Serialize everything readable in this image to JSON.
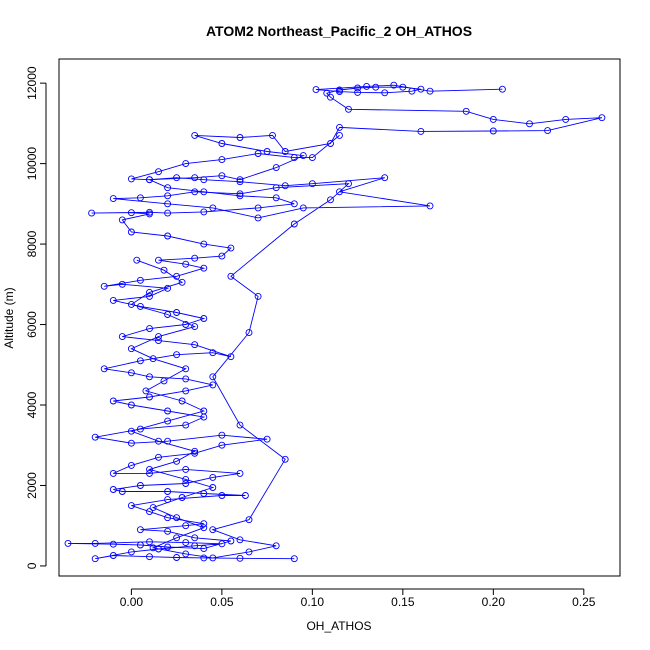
{
  "chart_data": {
    "type": "line",
    "title": "ATOM2 Northeast_Pacific_2 OH_ATHOS",
    "xlabel": "OH_ATHOS",
    "ylabel": "Altitude (m)",
    "xlim": [
      -0.04,
      0.27
    ],
    "ylim": [
      -250,
      12600
    ],
    "x_ticks": [
      0.0,
      0.05,
      0.1,
      0.15,
      0.2,
      0.25
    ],
    "x_tick_labels": [
      "0.00",
      "0.05",
      "0.10",
      "0.15",
      "0.20",
      "0.25"
    ],
    "y_ticks": [
      0,
      2000,
      4000,
      6000,
      8000,
      10000,
      12000
    ],
    "y_tick_labels": [
      "0",
      "2000",
      "4000",
      "6000",
      "8000",
      "10000",
      "12000"
    ],
    "grid": false,
    "series": [
      {
        "color": "#0000ff",
        "marker": "open-circle",
        "points": [
          [
            0.09,
            180
          ],
          [
            0.06,
            190
          ],
          [
            0.04,
            200
          ],
          [
            0.025,
            210
          ],
          [
            0.01,
            230
          ],
          [
            -0.01,
            260
          ],
          [
            -0.02,
            180
          ],
          [
            0.0,
            350
          ],
          [
            0.015,
            420
          ],
          [
            0.035,
            500
          ],
          [
            0.05,
            550
          ],
          [
            0.03,
            580
          ],
          [
            0.01,
            600
          ],
          [
            -0.02,
            560
          ],
          [
            -0.035,
            560
          ],
          [
            -0.01,
            540
          ],
          [
            0.005,
            520
          ],
          [
            0.02,
            470
          ],
          [
            0.04,
            430
          ],
          [
            0.055,
            620
          ],
          [
            0.035,
            700
          ],
          [
            0.02,
            860
          ],
          [
            0.005,
            900
          ],
          [
            0.03,
            1000
          ],
          [
            0.04,
            1050
          ],
          [
            0.02,
            1200
          ],
          [
            0.01,
            1350
          ],
          [
            0.0,
            1500
          ],
          [
            0.02,
            1650
          ],
          [
            0.05,
            1750
          ],
          [
            0.063,
            1750
          ],
          [
            0.04,
            1800
          ],
          [
            0.02,
            1850
          ],
          [
            -0.005,
            1850
          ],
          [
            -0.01,
            1900
          ],
          [
            0.005,
            2000
          ],
          [
            0.03,
            2050
          ],
          [
            0.045,
            2200
          ],
          [
            0.06,
            2300
          ],
          [
            0.03,
            2400
          ],
          [
            0.01,
            2300
          ],
          [
            -0.01,
            2300
          ],
          [
            0.0,
            2500
          ],
          [
            0.015,
            2700
          ],
          [
            0.035,
            2800
          ],
          [
            0.05,
            3000
          ],
          [
            0.075,
            3150
          ],
          [
            0.05,
            3250
          ],
          [
            0.02,
            3100
          ],
          [
            0.0,
            3050
          ],
          [
            -0.02,
            3200
          ],
          [
            0.005,
            3400
          ],
          [
            0.03,
            3500
          ],
          [
            0.04,
            3700
          ],
          [
            0.02,
            3850
          ],
          [
            0.0,
            4000
          ],
          [
            -0.01,
            4100
          ],
          [
            0.01,
            4200
          ],
          [
            0.03,
            4350
          ],
          [
            0.045,
            4500
          ],
          [
            0.03,
            4650
          ],
          [
            0.01,
            4700
          ],
          [
            0.0,
            4800
          ],
          [
            -0.015,
            4900
          ],
          [
            0.005,
            5100
          ],
          [
            0.025,
            5250
          ],
          [
            0.045,
            5300
          ],
          [
            0.055,
            5200
          ],
          [
            0.035,
            5500
          ],
          [
            0.015,
            5600
          ],
          [
            -0.005,
            5700
          ],
          [
            0.01,
            5900
          ],
          [
            0.03,
            6000
          ],
          [
            0.04,
            6150
          ],
          [
            0.025,
            6300
          ],
          [
            0.005,
            6450
          ],
          [
            -0.01,
            6600
          ],
          [
            0.01,
            6700
          ],
          [
            0.02,
            6900
          ],
          [
            -0.005,
            7000
          ],
          [
            -0.015,
            6950
          ],
          [
            0.005,
            7100
          ],
          [
            0.025,
            7200
          ],
          [
            0.04,
            7400
          ],
          [
            0.03,
            7500
          ],
          [
            0.015,
            7600
          ],
          [
            0.035,
            7650
          ],
          [
            0.05,
            7700
          ],
          [
            0.055,
            7900
          ],
          [
            0.04,
            8000
          ],
          [
            0.02,
            8200
          ],
          [
            0.0,
            8300
          ],
          [
            -0.005,
            8600
          ],
          [
            0.01,
            8750
          ],
          [
            0.0,
            8780
          ],
          [
            -0.022,
            8770
          ],
          [
            0.01,
            8790
          ],
          [
            0.02,
            8770
          ],
          [
            0.04,
            8800
          ],
          [
            0.07,
            8900
          ],
          [
            0.09,
            9000
          ],
          [
            0.08,
            9150
          ],
          [
            0.06,
            9200
          ],
          [
            0.04,
            9300
          ],
          [
            0.02,
            9400
          ],
          [
            0.01,
            9600
          ],
          [
            0.035,
            9650
          ],
          [
            0.05,
            9700
          ],
          [
            0.06,
            9600
          ],
          [
            0.08,
            9900
          ],
          [
            0.095,
            10200
          ],
          [
            0.075,
            10300
          ],
          [
            0.05,
            10500
          ],
          [
            0.035,
            10700
          ],
          [
            0.06,
            10650
          ],
          [
            0.078,
            10700
          ],
          [
            0.085,
            10300
          ],
          [
            0.11,
            10500
          ],
          [
            0.115,
            10900
          ],
          [
            0.16,
            10800
          ],
          [
            0.2,
            10810
          ],
          [
            0.23,
            10820
          ],
          [
            0.26,
            11140
          ],
          [
            0.24,
            11100
          ],
          [
            0.22,
            10990
          ],
          [
            0.2,
            11100
          ],
          [
            0.185,
            11300
          ],
          [
            0.12,
            11350
          ],
          [
            0.11,
            11650
          ],
          [
            0.108,
            11750
          ],
          [
            0.115,
            11830
          ],
          [
            0.125,
            11880
          ],
          [
            0.135,
            11900
          ],
          [
            0.15,
            11900
          ],
          [
            0.16,
            11850
          ],
          [
            0.155,
            11800
          ],
          [
            0.14,
            11760
          ],
          [
            0.125,
            11770
          ],
          [
            0.115,
            11790
          ],
          [
            0.102,
            11840
          ],
          [
            0.13,
            11920
          ],
          [
            0.145,
            11950
          ],
          [
            0.165,
            11800
          ],
          [
            0.205,
            11850
          ]
        ]
      },
      {
        "color": "#0000ff",
        "marker": "open-circle",
        "points": [
          [
            0.003,
            7600
          ],
          [
            0.018,
            7350
          ],
          [
            0.028,
            7050
          ],
          [
            0.01,
            6800
          ],
          [
            0.0,
            6500
          ],
          [
            0.02,
            6250
          ],
          [
            0.035,
            5950
          ],
          [
            0.015,
            5700
          ],
          [
            0.0,
            5400
          ],
          [
            0.012,
            5150
          ],
          [
            0.03,
            4900
          ],
          [
            0.018,
            4600
          ],
          [
            0.008,
            4350
          ],
          [
            0.028,
            4100
          ],
          [
            0.04,
            3850
          ],
          [
            0.02,
            3600
          ],
          [
            0.0,
            3350
          ],
          [
            0.015,
            3100
          ],
          [
            0.035,
            2850
          ],
          [
            0.025,
            2600
          ],
          [
            0.01,
            2400
          ],
          [
            0.03,
            2150
          ],
          [
            0.045,
            1950
          ],
          [
            0.028,
            1700
          ],
          [
            0.012,
            1450
          ],
          [
            0.025,
            1200
          ],
          [
            0.04,
            950
          ],
          [
            0.025,
            700
          ],
          [
            0.012,
            450
          ],
          [
            0.03,
            300
          ],
          [
            0.045,
            200
          ],
          [
            0.065,
            350
          ],
          [
            0.08,
            500
          ],
          [
            0.06,
            650
          ],
          [
            0.045,
            900
          ],
          [
            0.065,
            1150
          ],
          [
            0.085,
            2650
          ],
          [
            0.06,
            3500
          ],
          [
            0.045,
            4700
          ],
          [
            0.065,
            5800
          ],
          [
            0.07,
            6700
          ],
          [
            0.055,
            7200
          ],
          [
            0.09,
            8500
          ],
          [
            0.11,
            9100
          ],
          [
            0.12,
            9500
          ],
          [
            0.08,
            9400
          ],
          [
            0.06,
            9250
          ],
          [
            0.035,
            9300
          ],
          [
            0.02,
            9200
          ],
          [
            0.005,
            9150
          ],
          [
            -0.01,
            9130
          ],
          [
            0.02,
            9000
          ],
          [
            0.045,
            8900
          ],
          [
            0.07,
            8650
          ],
          [
            0.095,
            8900
          ],
          [
            0.165,
            8950
          ],
          [
            0.115,
            9300
          ],
          [
            0.14,
            9650
          ],
          [
            0.1,
            9500
          ],
          [
            0.085,
            9450
          ],
          [
            0.06,
            9550
          ],
          [
            0.04,
            9600
          ],
          [
            0.025,
            9650
          ],
          [
            0.01,
            9600
          ],
          [
            0.0,
            9620
          ],
          [
            0.015,
            9800
          ],
          [
            0.03,
            10000
          ],
          [
            0.05,
            10100
          ],
          [
            0.07,
            10250
          ],
          [
            0.09,
            10150
          ],
          [
            0.1,
            10150
          ],
          [
            0.115,
            10700
          ]
        ]
      }
    ]
  }
}
